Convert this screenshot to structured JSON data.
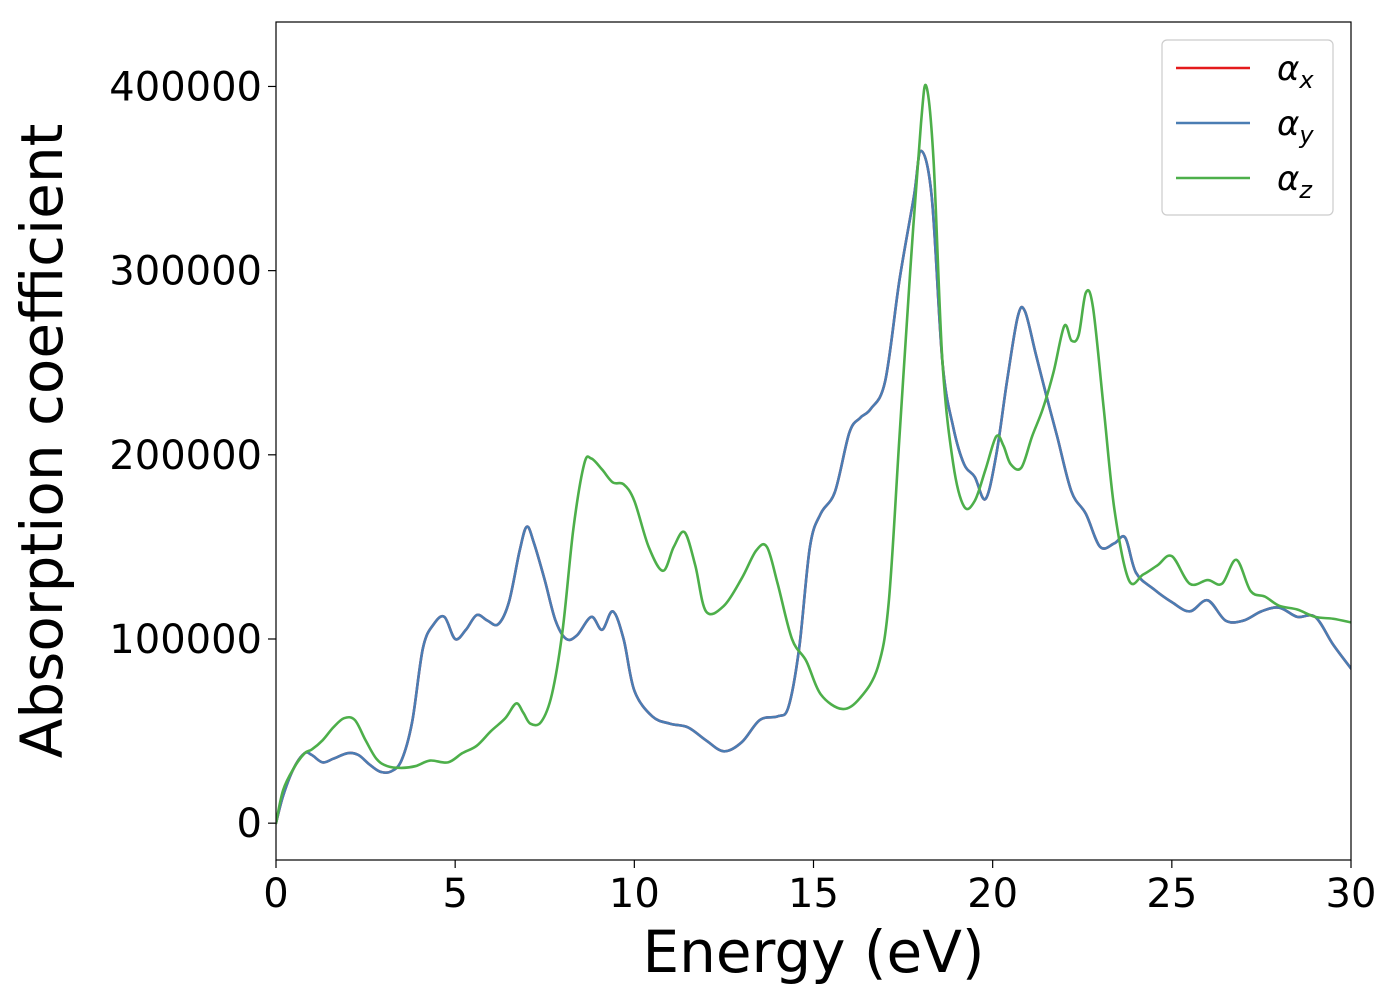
{
  "chart_data": {
    "type": "line",
    "title": "",
    "xlabel": "Energy (eV)",
    "ylabel": "Absorption coefficient",
    "xlim": [
      0,
      30
    ],
    "ylim": [
      -20000,
      435000
    ],
    "xticks": [
      0,
      5,
      10,
      15,
      20,
      25,
      30
    ],
    "xtick_labels": [
      "0",
      "5",
      "10",
      "15",
      "20",
      "25",
      "30"
    ],
    "yticks": [
      0,
      100000,
      200000,
      300000,
      400000
    ],
    "ytick_labels": [
      "0",
      "100000",
      "200000",
      "300000",
      "400000"
    ],
    "grid": false,
    "legend_position": "top-right",
    "series": [
      {
        "name": "α",
        "subscript": "x",
        "color": "#e41a1c",
        "x": [
          0,
          0.2,
          0.5,
          0.8,
          1.0,
          1.3,
          1.6,
          2.0,
          2.3,
          2.6,
          2.9,
          3.2,
          3.5,
          3.8,
          4.1,
          4.4,
          4.7,
          5.0,
          5.3,
          5.6,
          5.9,
          6.2,
          6.5,
          6.8,
          7.0,
          7.2,
          7.5,
          7.8,
          8.1,
          8.4,
          8.8,
          9.1,
          9.4,
          9.7,
          10.0,
          10.5,
          11.0,
          11.5,
          12.0,
          12.5,
          13.0,
          13.5,
          14.0,
          14.3,
          14.6,
          14.9,
          15.2,
          15.6,
          16.0,
          16.3,
          16.6,
          17.0,
          17.4,
          17.8,
          18.0,
          18.3,
          18.6,
          18.9,
          19.2,
          19.5,
          19.8,
          20.1,
          20.4,
          20.7,
          20.9,
          21.2,
          21.5,
          21.8,
          22.2,
          22.6,
          23.0,
          23.4,
          23.7,
          24.0,
          24.5,
          25.0,
          25.5,
          26.0,
          26.5,
          27.0,
          27.5,
          28.0,
          28.5,
          29.0,
          29.5,
          30.0
        ],
        "values": [
          0,
          15000,
          30000,
          38000,
          37000,
          33000,
          35000,
          38000,
          37000,
          32000,
          28000,
          28000,
          34000,
          55000,
          95000,
          108000,
          112000,
          100000,
          105000,
          113000,
          110000,
          108000,
          120000,
          148000,
          161000,
          152000,
          132000,
          110000,
          100000,
          102000,
          112000,
          105000,
          115000,
          100000,
          72000,
          58000,
          54000,
          52000,
          45000,
          39000,
          44000,
          56000,
          58000,
          63000,
          95000,
          150000,
          168000,
          180000,
          212000,
          220000,
          225000,
          240000,
          295000,
          340000,
          365000,
          340000,
          250000,
          215000,
          195000,
          188000,
          176000,
          200000,
          240000,
          275000,
          278000,
          255000,
          232000,
          210000,
          180000,
          168000,
          150000,
          152000,
          155000,
          136000,
          127000,
          120000,
          115000,
          121000,
          110000,
          110000,
          115000,
          117000,
          112000,
          112000,
          97000,
          84000
        ]
      },
      {
        "name": "α",
        "subscript": "y",
        "color": "#4a7db3",
        "x": [
          0,
          0.2,
          0.5,
          0.8,
          1.0,
          1.3,
          1.6,
          2.0,
          2.3,
          2.6,
          2.9,
          3.2,
          3.5,
          3.8,
          4.1,
          4.4,
          4.7,
          5.0,
          5.3,
          5.6,
          5.9,
          6.2,
          6.5,
          6.8,
          7.0,
          7.2,
          7.5,
          7.8,
          8.1,
          8.4,
          8.8,
          9.1,
          9.4,
          9.7,
          10.0,
          10.5,
          11.0,
          11.5,
          12.0,
          12.5,
          13.0,
          13.5,
          14.0,
          14.3,
          14.6,
          14.9,
          15.2,
          15.6,
          16.0,
          16.3,
          16.6,
          17.0,
          17.4,
          17.8,
          18.0,
          18.3,
          18.6,
          18.9,
          19.2,
          19.5,
          19.8,
          20.1,
          20.4,
          20.7,
          20.9,
          21.2,
          21.5,
          21.8,
          22.2,
          22.6,
          23.0,
          23.4,
          23.7,
          24.0,
          24.5,
          25.0,
          25.5,
          26.0,
          26.5,
          27.0,
          27.5,
          28.0,
          28.5,
          29.0,
          29.5,
          30.0
        ],
        "values": [
          0,
          15000,
          30000,
          38000,
          37000,
          33000,
          35000,
          38000,
          37000,
          32000,
          28000,
          28000,
          34000,
          55000,
          95000,
          108000,
          112000,
          100000,
          105000,
          113000,
          110000,
          108000,
          120000,
          148000,
          161000,
          152000,
          132000,
          110000,
          100000,
          102000,
          112000,
          105000,
          115000,
          100000,
          72000,
          58000,
          54000,
          52000,
          45000,
          39000,
          44000,
          56000,
          58000,
          63000,
          95000,
          150000,
          168000,
          180000,
          212000,
          220000,
          225000,
          240000,
          295000,
          340000,
          365000,
          340000,
          250000,
          215000,
          195000,
          188000,
          176000,
          200000,
          240000,
          275000,
          278000,
          255000,
          232000,
          210000,
          180000,
          168000,
          150000,
          152000,
          155000,
          136000,
          127000,
          120000,
          115000,
          121000,
          110000,
          110000,
          115000,
          117000,
          112000,
          112000,
          97000,
          84000
        ]
      },
      {
        "name": "α",
        "subscript": "z",
        "color": "#4daf4a",
        "x": [
          0,
          0.2,
          0.5,
          0.8,
          1.0,
          1.3,
          1.6,
          1.9,
          2.2,
          2.5,
          2.8,
          3.1,
          3.5,
          3.9,
          4.3,
          4.8,
          5.2,
          5.6,
          6.0,
          6.4,
          6.7,
          6.9,
          7.1,
          7.4,
          7.7,
          8.0,
          8.3,
          8.6,
          8.8,
          9.1,
          9.4,
          9.7,
          10.0,
          10.4,
          10.8,
          11.1,
          11.4,
          11.7,
          12.0,
          12.5,
          13.0,
          13.4,
          13.7,
          14.0,
          14.4,
          14.8,
          15.2,
          15.8,
          16.3,
          16.8,
          17.1,
          17.4,
          17.7,
          18.0,
          18.15,
          18.35,
          18.6,
          18.9,
          19.2,
          19.5,
          19.8,
          20.1,
          20.3,
          20.5,
          20.8,
          21.1,
          21.4,
          21.7,
          22.0,
          22.2,
          22.4,
          22.6,
          22.8,
          23.1,
          23.4,
          23.8,
          24.2,
          24.6,
          25.0,
          25.5,
          26.0,
          26.4,
          26.8,
          27.2,
          27.6,
          28.0,
          28.5,
          29.0,
          29.5,
          30.0
        ],
        "values": [
          0,
          18000,
          30000,
          38000,
          40000,
          45000,
          52000,
          57000,
          56000,
          45000,
          35000,
          31000,
          30000,
          31000,
          34000,
          33000,
          38000,
          42000,
          50000,
          57000,
          65000,
          60000,
          54000,
          55000,
          70000,
          105000,
          160000,
          195000,
          198000,
          192000,
          185000,
          184000,
          175000,
          150000,
          137000,
          150000,
          158000,
          140000,
          115000,
          118000,
          133000,
          148000,
          150000,
          130000,
          100000,
          88000,
          70000,
          62000,
          68000,
          85000,
          120000,
          210000,
          300000,
          380000,
          400000,
          360000,
          250000,
          195000,
          172000,
          175000,
          192000,
          210000,
          205000,
          195000,
          193000,
          210000,
          225000,
          245000,
          270000,
          262000,
          265000,
          288000,
          280000,
          225000,
          170000,
          132000,
          135000,
          140000,
          145000,
          130000,
          132000,
          130000,
          143000,
          126000,
          123000,
          118000,
          116000,
          112000,
          111000,
          109000
        ]
      }
    ]
  }
}
